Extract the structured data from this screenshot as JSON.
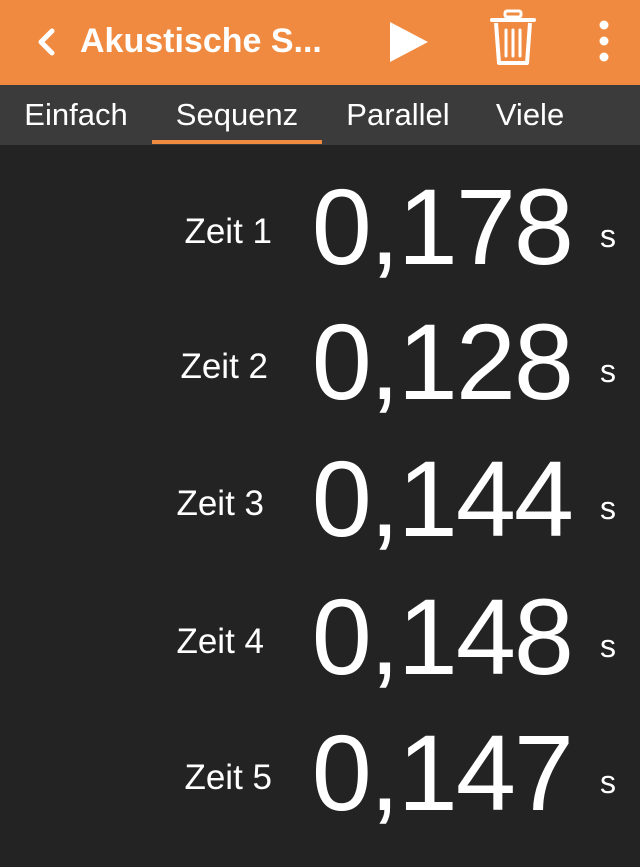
{
  "toolbar": {
    "title": "Akustische S...",
    "icons": [
      "chevron-left-icon",
      "play-icon",
      "trash-icon",
      "more-vertical-icon"
    ]
  },
  "tabs": [
    {
      "label": "Einfach",
      "selected": false
    },
    {
      "label": "Sequenz",
      "selected": true
    },
    {
      "label": "Parallel",
      "selected": false
    },
    {
      "label": "Viele",
      "selected": false
    }
  ],
  "results": [
    {
      "label": "Zeit 1",
      "value": "0,178",
      "unit": "s"
    },
    {
      "label": "Zeit 2",
      "value": "0,128",
      "unit": "s"
    },
    {
      "label": "Zeit 3",
      "value": "0,144",
      "unit": "s"
    },
    {
      "label": "Zeit 4",
      "value": "0,148",
      "unit": "s"
    },
    {
      "label": "Zeit 5",
      "value": "0,147",
      "unit": "s"
    }
  ],
  "colors": {
    "accent": "#ef8a40",
    "background": "#232323",
    "tabbar": "#3b3b3b",
    "text": "#ffffff"
  }
}
